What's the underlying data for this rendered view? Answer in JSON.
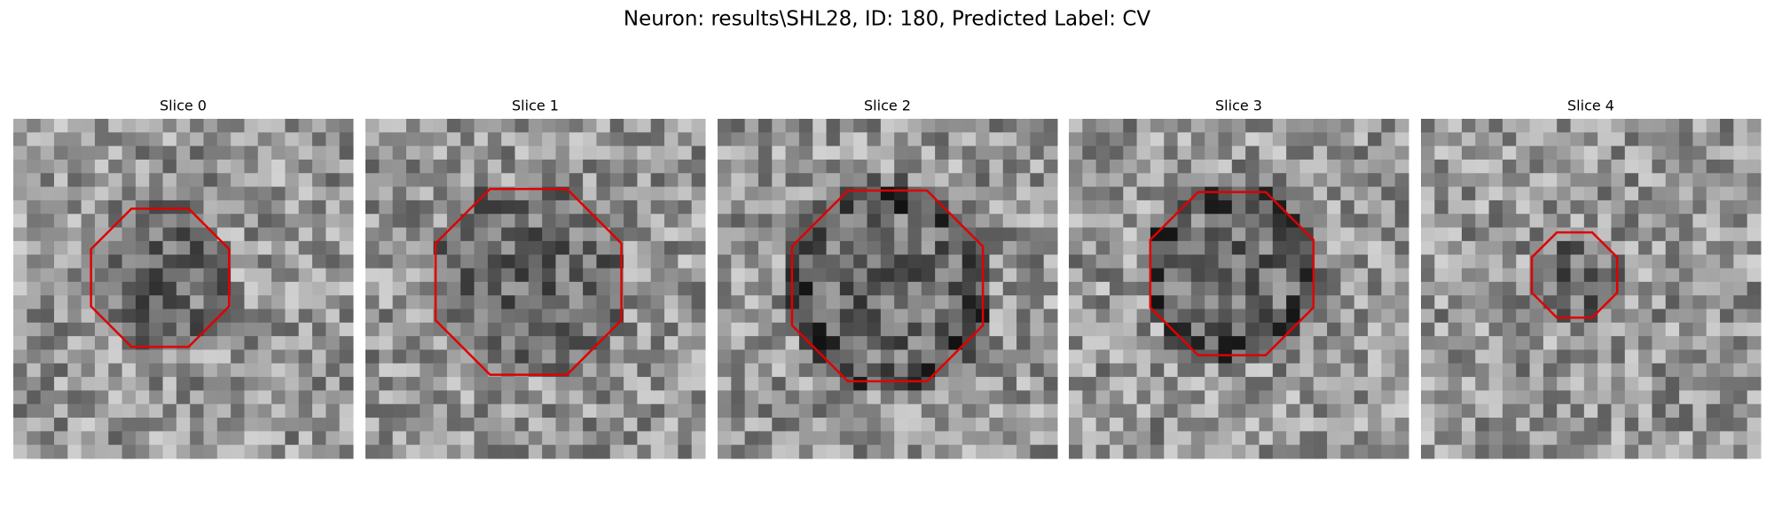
{
  "title": "Neuron: results\\SHL28, ID: 180, Predicted Label: CV",
  "slices": [
    {
      "title": "Slice 0"
    },
    {
      "title": "Slice 1"
    },
    {
      "title": "Slice 2"
    },
    {
      "title": "Slice 3"
    },
    {
      "title": "Slice 4"
    }
  ]
}
